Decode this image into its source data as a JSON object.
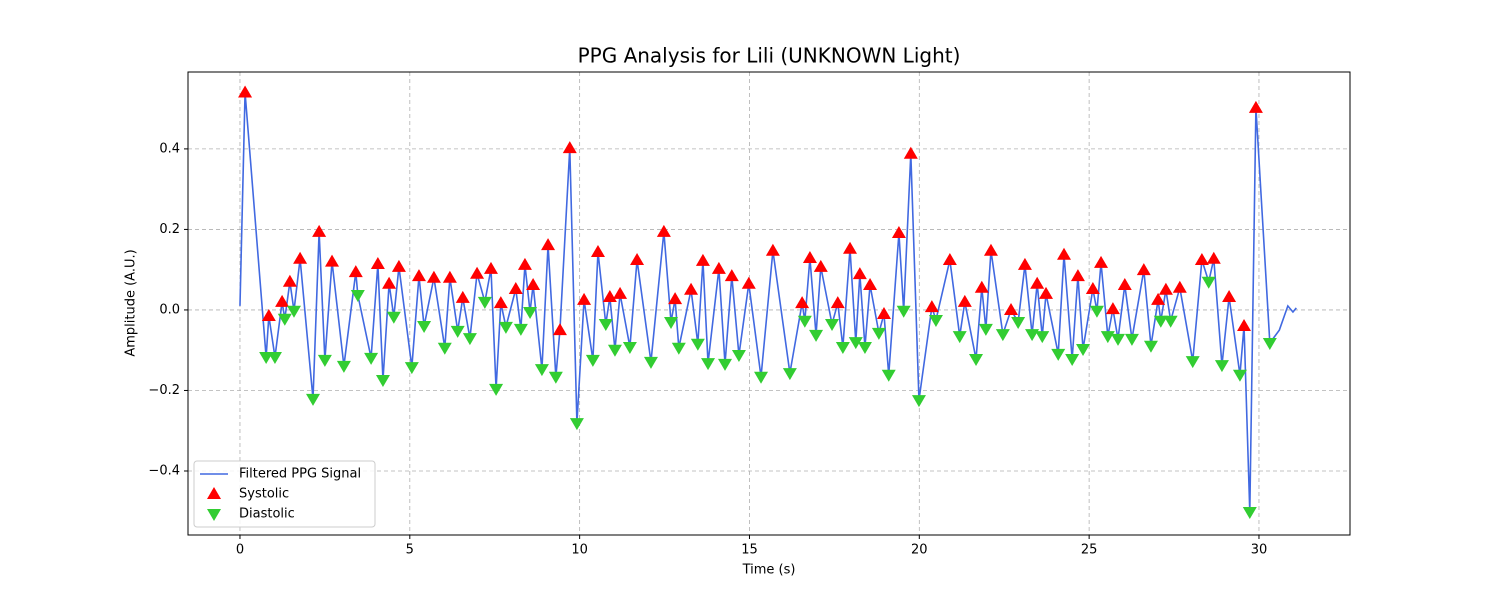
{
  "chart_data": {
    "type": "line",
    "title": "PPG Analysis for Lili (UNKNOWN Light)",
    "xlabel": "Time (s)",
    "ylabel": "Amplitude (A.U.)",
    "xlim": [
      -1.53,
      32.68
    ],
    "ylim": [
      -0.559,
      0.591
    ],
    "xticks": [
      0,
      5,
      10,
      15,
      20,
      25,
      30
    ],
    "yticks": [
      {
        "value": -0.4,
        "label": "−0.4"
      },
      {
        "value": -0.2,
        "label": "−0.2"
      },
      {
        "value": 0,
        "label": "0.0"
      },
      0.2,
      0.4
    ],
    "grid": true,
    "legend": "lower left",
    "series": [
      {
        "name": "Filtered PPG Signal",
        "type": "line",
        "color": "#4169e1",
        "x": [
          0,
          0.15,
          0.77,
          0.85,
          1.03,
          1.24,
          1.32,
          1.47,
          1.59,
          1.77,
          2.15,
          2.33,
          2.5,
          2.71,
          3.06,
          3.41,
          3.47,
          3.86,
          4.06,
          4.21,
          4.39,
          4.53,
          4.68,
          5.06,
          5.27,
          5.42,
          5.71,
          6.03,
          6.18,
          6.41,
          6.56,
          6.77,
          6.98,
          7.21,
          7.39,
          7.54,
          7.68,
          7.83,
          8.12,
          8.27,
          8.39,
          8.54,
          8.63,
          8.89,
          9.07,
          9.3,
          9.42,
          9.71,
          9.92,
          10.13,
          10.39,
          10.54,
          10.77,
          10.89,
          11.04,
          11.19,
          11.48,
          11.69,
          12.1,
          12.48,
          12.69,
          12.81,
          12.92,
          13.28,
          13.48,
          13.63,
          13.78,
          14.1,
          14.28,
          14.48,
          14.69,
          14.98,
          15.34,
          15.69,
          16.19,
          16.55,
          16.63,
          16.78,
          16.96,
          17.1,
          17.43,
          17.6,
          17.75,
          17.96,
          18.13,
          18.25,
          18.4,
          18.55,
          18.81,
          18.96,
          19.1,
          19.4,
          19.54,
          19.75,
          19.99,
          20.37,
          20.49,
          20.9,
          21.19,
          21.34,
          21.67,
          21.84,
          21.96,
          22.11,
          22.46,
          22.7,
          22.91,
          23.11,
          23.32,
          23.47,
          23.62,
          23.73,
          24.09,
          24.26,
          24.5,
          24.67,
          24.82,
          25.11,
          25.23,
          25.35,
          25.55,
          25.7,
          25.85,
          26.05,
          26.26,
          26.61,
          26.82,
          27.03,
          27.11,
          27.26,
          27.4,
          27.67,
          28.05,
          28.32,
          28.52,
          28.67,
          28.91,
          29.12,
          29.44,
          29.56,
          29.73,
          29.91,
          30.32,
          30.6,
          30.85,
          31.0,
          31.1
        ],
        "values": [
          0.01,
          0.54,
          -0.117,
          -0.015,
          -0.117,
          0.02,
          -0.022,
          0.07,
          -0.002,
          0.127,
          -0.221,
          0.194,
          -0.124,
          0.12,
          -0.139,
          0.094,
          0.037,
          -0.119,
          0.114,
          -0.174,
          0.065,
          -0.017,
          0.107,
          -0.142,
          0.084,
          -0.04,
          0.08,
          -0.094,
          0.08,
          -0.052,
          0.03,
          -0.07,
          0.09,
          0.02,
          0.102,
          -0.196,
          0.017,
          -0.042,
          0.052,
          -0.047,
          0.112,
          -0.005,
          0.062,
          -0.147,
          0.161,
          -0.166,
          -0.05,
          0.402,
          -0.281,
          0.025,
          -0.124,
          0.144,
          -0.035,
          0.032,
          -0.099,
          0.04,
          -0.092,
          0.124,
          -0.129,
          0.194,
          -0.03,
          0.027,
          -0.094,
          0.05,
          -0.084,
          0.122,
          -0.132,
          0.102,
          -0.134,
          0.084,
          -0.112,
          0.065,
          -0.166,
          0.147,
          -0.157,
          0.017,
          -0.027,
          0.129,
          -0.062,
          0.107,
          -0.035,
          0.017,
          -0.092,
          0.152,
          -0.08,
          0.089,
          -0.092,
          0.062,
          -0.057,
          -0.01,
          -0.161,
          0.191,
          -0.002,
          0.388,
          -0.224,
          0.007,
          -0.025,
          0.124,
          -0.065,
          0.02,
          -0.122,
          0.055,
          -0.047,
          0.147,
          -0.06,
          0.0,
          -0.03,
          0.112,
          -0.06,
          0.065,
          -0.065,
          0.04,
          -0.109,
          0.137,
          -0.122,
          0.084,
          -0.097,
          0.052,
          -0.002,
          0.117,
          -0.065,
          0.002,
          -0.072,
          0.062,
          -0.072,
          0.099,
          -0.089,
          0.025,
          -0.027,
          0.05,
          -0.027,
          0.055,
          -0.127,
          0.124,
          0.07,
          0.127,
          -0.137,
          0.032,
          -0.161,
          -0.04,
          -0.502,
          0.502,
          -0.082,
          -0.05,
          0.01,
          -0.005,
          0.005
        ]
      },
      {
        "name": "Systolic",
        "type": "scatter",
        "marker": "^",
        "color": "#ff0000",
        "x": [
          0.15,
          0.85,
          1.24,
          1.47,
          1.77,
          2.33,
          2.71,
          3.41,
          4.06,
          4.39,
          4.68,
          5.27,
          5.71,
          6.18,
          6.56,
          6.98,
          7.39,
          7.68,
          8.12,
          8.39,
          8.63,
          9.07,
          9.42,
          9.71,
          10.13,
          10.54,
          10.89,
          11.19,
          11.69,
          12.48,
          12.81,
          13.28,
          13.63,
          14.1,
          14.48,
          14.98,
          15.69,
          16.55,
          16.78,
          17.1,
          17.6,
          17.96,
          18.25,
          18.55,
          18.96,
          19.4,
          19.75,
          20.37,
          20.9,
          21.34,
          21.84,
          22.11,
          22.7,
          23.11,
          23.47,
          23.73,
          24.26,
          24.67,
          25.11,
          25.35,
          25.7,
          26.05,
          26.61,
          27.03,
          27.26,
          27.67,
          28.32,
          28.67,
          29.12,
          29.56,
          29.91
        ],
        "values": [
          0.54,
          -0.015,
          0.02,
          0.07,
          0.127,
          0.194,
          0.12,
          0.094,
          0.114,
          0.065,
          0.107,
          0.084,
          0.08,
          0.08,
          0.03,
          0.09,
          0.102,
          0.017,
          0.052,
          0.112,
          0.062,
          0.161,
          -0.05,
          0.402,
          0.025,
          0.144,
          0.032,
          0.04,
          0.124,
          0.194,
          0.027,
          0.05,
          0.122,
          0.102,
          0.084,
          0.065,
          0.147,
          0.017,
          0.129,
          0.107,
          0.017,
          0.152,
          0.089,
          0.062,
          -0.01,
          0.191,
          0.388,
          0.007,
          0.124,
          0.02,
          0.055,
          0.147,
          0.0,
          0.112,
          0.065,
          0.04,
          0.137,
          0.084,
          0.052,
          0.117,
          0.002,
          0.062,
          0.099,
          0.025,
          0.05,
          0.055,
          0.124,
          0.127,
          0.032,
          -0.04,
          0.502
        ]
      },
      {
        "name": "Diastolic",
        "type": "scatter",
        "marker": "v",
        "color": "#32cd32",
        "x": [
          0.77,
          1.03,
          1.32,
          1.59,
          2.15,
          2.5,
          3.06,
          3.47,
          3.86,
          4.21,
          4.53,
          5.06,
          5.42,
          6.03,
          6.41,
          6.77,
          7.21,
          7.54,
          7.83,
          8.27,
          8.54,
          8.89,
          9.3,
          9.92,
          10.39,
          10.77,
          11.04,
          11.48,
          12.1,
          12.69,
          12.92,
          13.48,
          13.78,
          14.28,
          14.69,
          15.34,
          16.19,
          16.63,
          16.96,
          17.43,
          17.75,
          18.13,
          18.4,
          18.81,
          19.1,
          19.54,
          19.99,
          20.49,
          21.19,
          21.67,
          21.96,
          22.46,
          22.91,
          23.32,
          23.62,
          24.09,
          24.5,
          24.82,
          25.23,
          25.55,
          25.85,
          26.26,
          26.82,
          27.11,
          27.4,
          28.05,
          28.52,
          28.91,
          29.44,
          29.73,
          30.32
        ],
        "values": [
          -0.117,
          -0.117,
          -0.022,
          -0.002,
          -0.221,
          -0.124,
          -0.139,
          0.037,
          -0.119,
          -0.174,
          -0.017,
          -0.142,
          -0.04,
          -0.094,
          -0.052,
          -0.07,
          0.02,
          -0.196,
          -0.042,
          -0.047,
          -0.005,
          -0.147,
          -0.166,
          -0.281,
          -0.124,
          -0.035,
          -0.099,
          -0.092,
          -0.129,
          -0.03,
          -0.094,
          -0.084,
          -0.132,
          -0.134,
          -0.112,
          -0.166,
          -0.157,
          -0.027,
          -0.062,
          -0.035,
          -0.092,
          -0.08,
          -0.092,
          -0.057,
          -0.161,
          -0.002,
          -0.224,
          -0.025,
          -0.065,
          -0.122,
          -0.047,
          -0.06,
          -0.03,
          -0.06,
          -0.065,
          -0.109,
          -0.122,
          -0.097,
          -0.002,
          -0.065,
          -0.072,
          -0.072,
          -0.089,
          -0.027,
          -0.027,
          -0.127,
          0.07,
          -0.137,
          -0.161,
          -0.502,
          -0.082
        ]
      }
    ]
  }
}
